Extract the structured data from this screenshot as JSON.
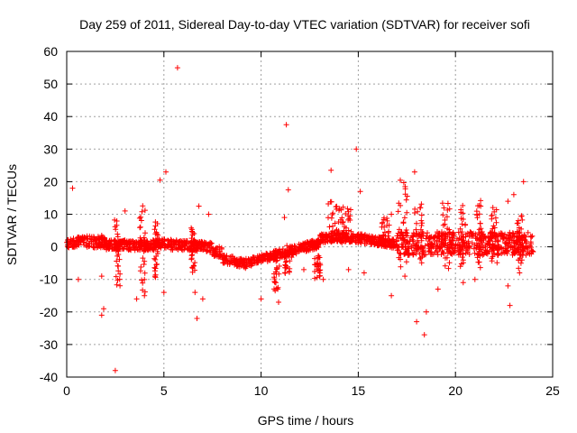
{
  "chart_data": {
    "type": "scatter",
    "title": "Day 259 of 2011, Sidereal Day-to-day VTEC variation (SDTVAR) for receiver sofi",
    "xlabel": "GPS time / hours",
    "ylabel": "SDTVAR / TECUs",
    "xlim": [
      0,
      25
    ],
    "ylim": [
      -40,
      60
    ],
    "xticks": [
      0,
      5,
      10,
      15,
      20,
      25
    ],
    "yticks": [
      -40,
      -30,
      -20,
      -10,
      0,
      10,
      20,
      30,
      40,
      50,
      60
    ],
    "grid": true,
    "marker": "+",
    "color": "#ff0000",
    "outliers": [
      {
        "x": 5.7,
        "y": 55
      },
      {
        "x": 11.3,
        "y": 37.5
      },
      {
        "x": 14.9,
        "y": 30
      },
      {
        "x": 13.6,
        "y": 23.5
      },
      {
        "x": 5.1,
        "y": 23
      },
      {
        "x": 4.8,
        "y": 20.5
      },
      {
        "x": 0.3,
        "y": 18
      },
      {
        "x": 11.4,
        "y": 17.5
      },
      {
        "x": 15.1,
        "y": 17
      },
      {
        "x": 17.9,
        "y": 23
      },
      {
        "x": 23.5,
        "y": 20
      },
      {
        "x": 23.0,
        "y": 16
      },
      {
        "x": 22.7,
        "y": 14
      },
      {
        "x": 6.8,
        "y": 12.5
      },
      {
        "x": 7.3,
        "y": 10
      },
      {
        "x": 21.3,
        "y": 12.5
      },
      {
        "x": 18.2,
        "y": 12
      },
      {
        "x": 3.0,
        "y": 11
      },
      {
        "x": 11.2,
        "y": 9
      },
      {
        "x": 1.8,
        "y": 3.5
      },
      {
        "x": 16.7,
        "y": 10
      },
      {
        "x": 2.5,
        "y": -38
      },
      {
        "x": 6.7,
        "y": -22
      },
      {
        "x": 1.8,
        "y": -21
      },
      {
        "x": 1.9,
        "y": -19
      },
      {
        "x": 18.4,
        "y": -27
      },
      {
        "x": 22.8,
        "y": -18
      },
      {
        "x": 22.7,
        "y": -12
      },
      {
        "x": 18.0,
        "y": -23
      },
      {
        "x": 16.7,
        "y": -15
      },
      {
        "x": 6.6,
        "y": -14
      },
      {
        "x": 7.0,
        "y": -16
      },
      {
        "x": 5.0,
        "y": -14
      },
      {
        "x": 10.0,
        "y": -16
      },
      {
        "x": 10.9,
        "y": -17
      },
      {
        "x": 13.2,
        "y": -10
      },
      {
        "x": 14.5,
        "y": -7
      },
      {
        "x": 0.6,
        "y": -10
      },
      {
        "x": 1.8,
        "y": -9
      },
      {
        "x": 23.3,
        "y": -8
      },
      {
        "x": 19.1,
        "y": -13
      },
      {
        "x": 18.5,
        "y": -20
      },
      {
        "x": 4.0,
        "y": -15
      },
      {
        "x": 3.6,
        "y": -16
      },
      {
        "x": 8.1,
        "y": -5
      },
      {
        "x": 12.2,
        "y": -7
      },
      {
        "x": 21.0,
        "y": -10
      },
      {
        "x": 20.4,
        "y": -11
      },
      {
        "x": 17.4,
        "y": -9
      },
      {
        "x": 15.3,
        "y": -8
      }
    ]
  }
}
